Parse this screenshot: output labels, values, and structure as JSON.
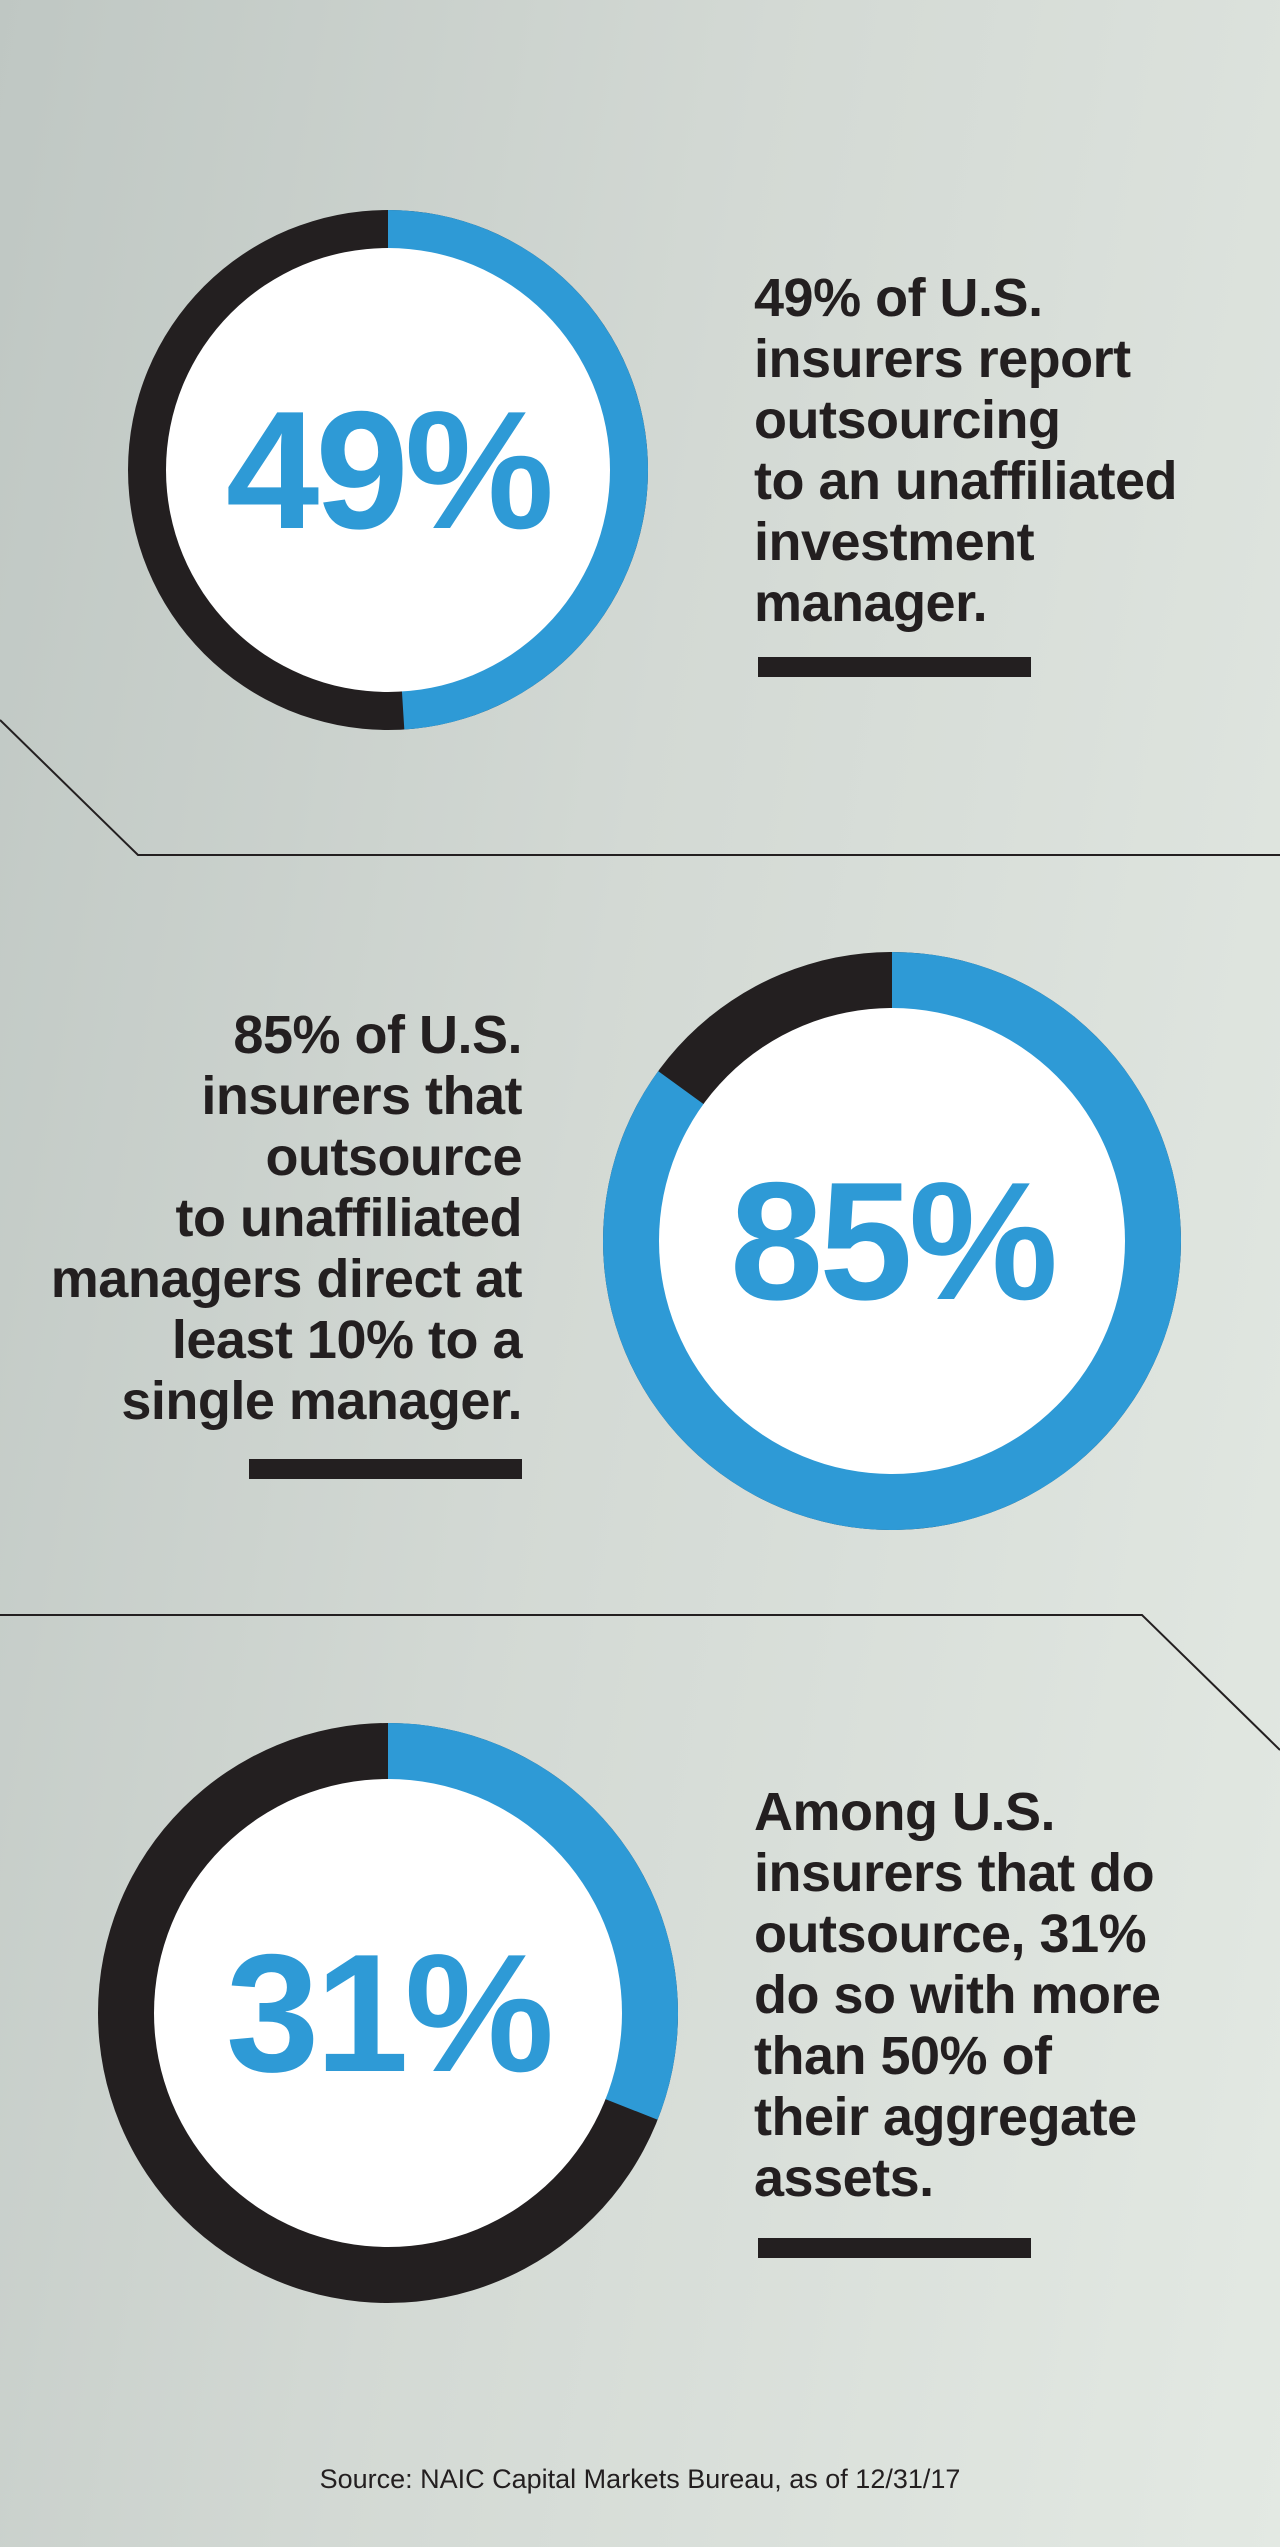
{
  "chart_data": [
    {
      "type": "pie",
      "value": 49,
      "label": "49%",
      "description_lines": [
        "49% of U.S.",
        "insurers report",
        "outsourcing",
        "to an unaffiliated",
        "investment",
        "manager."
      ]
    },
    {
      "type": "pie",
      "value": 85,
      "label": "85%",
      "description_lines": [
        "85% of U.S.",
        "insurers that",
        "outsource",
        "to unaffiliated",
        "managers direct at",
        "least 10% to a",
        "single manager."
      ]
    },
    {
      "type": "pie",
      "value": 31,
      "label": "31%",
      "description_lines": [
        "Among U.S.",
        "insurers that do",
        "outsource, 31%",
        "do so with more",
        "than 50% of",
        "their aggregate",
        "assets."
      ]
    }
  ],
  "colors": {
    "accent": "#2e9ad6",
    "ring_dark": "#231f20",
    "inner": "#ffffff",
    "text": "#231f20"
  },
  "source": "Source: NAIC Capital Markets Bureau, as of 12/31/17"
}
